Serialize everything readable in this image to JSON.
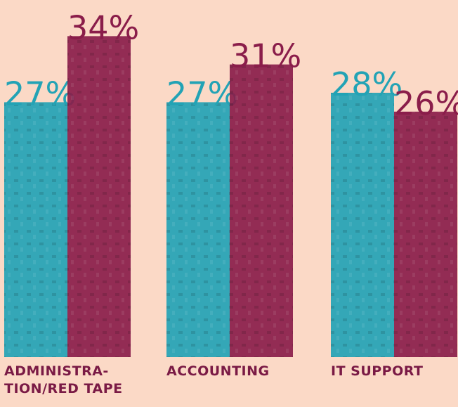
{
  "chart_data": {
    "type": "bar",
    "categories": [
      "ADMINISTRA-\nTION/RED TAPE",
      "ACCOUNTING",
      "IT SUPPORT"
    ],
    "series": [
      {
        "color": "#23a3b5",
        "values": [
          27,
          27,
          28
        ],
        "value_labels": [
          "27%",
          "27%",
          "28%"
        ]
      },
      {
        "color": "#8a1d4a",
        "values": [
          34,
          31,
          26
        ],
        "value_labels": [
          "34%",
          "31%",
          "26%"
        ]
      }
    ]
  }
}
